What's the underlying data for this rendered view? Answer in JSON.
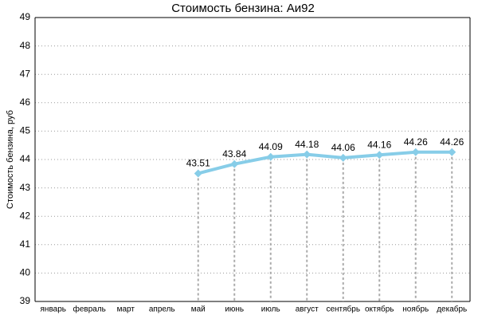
{
  "chart_data": {
    "type": "line",
    "title": "Стоимость бензина: Аи92",
    "y_label": "Стоимость бензина, руб",
    "categories": [
      "январь",
      "февраль",
      "март",
      "апрель",
      "май",
      "июнь",
      "июль",
      "август",
      "сентябрь",
      "октябрь",
      "ноябрь",
      "декабрь"
    ],
    "series": [
      {
        "name": "Аи92",
        "color": "#87cde8",
        "values": [
          null,
          null,
          null,
          null,
          43.51,
          43.84,
          44.09,
          44.18,
          44.06,
          44.16,
          44.26,
          44.26
        ]
      }
    ],
    "ylim": [
      39,
      49
    ],
    "yticks": [
      39,
      40,
      41,
      42,
      43,
      44,
      45,
      46,
      47,
      48,
      49
    ],
    "grid": true,
    "data_labels": true
  }
}
